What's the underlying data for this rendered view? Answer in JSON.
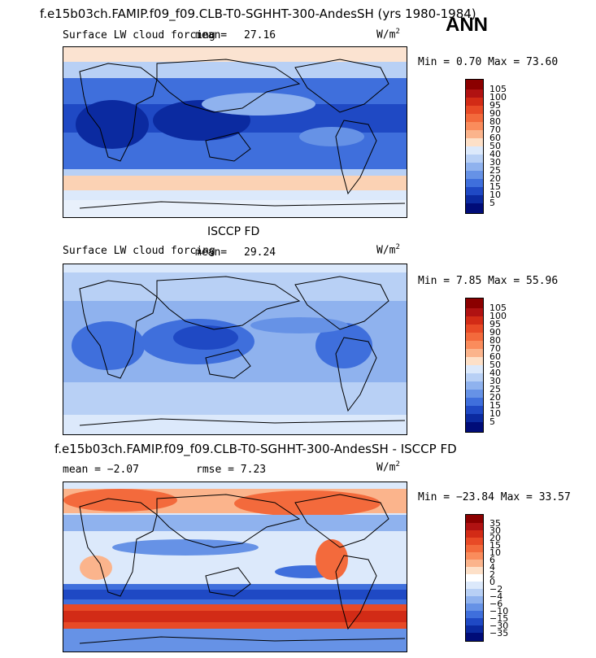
{
  "header": {
    "main_title": "f.e15b03ch.FAMIP.f09_f09.CLB-T0-SGHHT-300-AndesSH (yrs 1980-1984)",
    "season": "ANN"
  },
  "panels": [
    {
      "id": "model",
      "variable": "Surface LW cloud forcing",
      "mean_label": "mean=",
      "mean_value": "27.16",
      "units": "W/m",
      "units_sup": "2",
      "minmax": "Min =    0.70 Max =  73.60",
      "colorbar_labels": [
        "105",
        "100",
        "95",
        "90",
        "80",
        "70",
        "60",
        "50",
        "40",
        "30",
        "25",
        "20",
        "15",
        "10",
        "5"
      ],
      "colors": [
        "#8b0000",
        "#b01212",
        "#d22b16",
        "#e84a26",
        "#f36a3c",
        "#fa8c5c",
        "#fbb48c",
        "#fde0c8",
        "#dce9fb",
        "#b8d0f5",
        "#8fb2ee",
        "#6692e6",
        "#3f6fdc",
        "#1f49c4",
        "#0b2aa0",
        "#000c78"
      ]
    },
    {
      "id": "obs",
      "obs_title": "ISCCP FD",
      "variable": "Surface LW cloud forcing",
      "mean_label": "mean=",
      "mean_value": "29.24",
      "units": "W/m",
      "units_sup": "2",
      "minmax": "Min =    7.85 Max =  55.96",
      "colorbar_labels": [
        "105",
        "100",
        "95",
        "90",
        "80",
        "70",
        "60",
        "50",
        "40",
        "30",
        "25",
        "20",
        "15",
        "10",
        "5"
      ],
      "colors": [
        "#8b0000",
        "#b01212",
        "#d22b16",
        "#e84a26",
        "#f36a3c",
        "#fa8c5c",
        "#fbb48c",
        "#fde0c8",
        "#dce9fb",
        "#b8d0f5",
        "#8fb2ee",
        "#6692e6",
        "#3f6fdc",
        "#1f49c4",
        "#0b2aa0",
        "#000c78"
      ]
    },
    {
      "id": "diff",
      "diff_title": "f.e15b03ch.FAMIP.f09_f09.CLB-T0-SGHHT-300-AndesSH - ISCCP FD",
      "mean_text": "mean =  −2.07",
      "rmse_text": "rmse =    7.23",
      "units": "W/m",
      "units_sup": "2",
      "minmax": "Min = −23.84 Max =  33.57",
      "colorbar_labels": [
        "35",
        "30",
        "20",
        "15",
        "10",
        "6",
        "4",
        "2",
        "0",
        "−2",
        "−4",
        "−6",
        "−10",
        "−15",
        "−30",
        "−35"
      ],
      "colors": [
        "#8b0000",
        "#b01212",
        "#d22b16",
        "#e84a26",
        "#f36a3c",
        "#fa8c5c",
        "#fbb48c",
        "#fde0c8",
        "#ffffff",
        "#dce9fb",
        "#b8d0f5",
        "#8fb2ee",
        "#6692e6",
        "#3f6fdc",
        "#1f49c4",
        "#0b2aa0",
        "#000c78"
      ]
    }
  ],
  "chart_data": [
    {
      "type": "heatmap",
      "title": "Surface LW cloud forcing",
      "mean": 27.16,
      "min": 0.7,
      "max": 73.6,
      "units": "W/m2",
      "colorbar_levels": [
        5,
        10,
        15,
        20,
        25,
        30,
        40,
        50,
        60,
        70,
        80,
        90,
        95,
        100,
        105
      ]
    },
    {
      "type": "heatmap",
      "title": "Surface LW cloud forcing",
      "subtitle": "ISCCP FD",
      "mean": 29.24,
      "min": 7.85,
      "max": 55.96,
      "units": "W/m2",
      "colorbar_levels": [
        5,
        10,
        15,
        20,
        25,
        30,
        40,
        50,
        60,
        70,
        80,
        90,
        95,
        100,
        105
      ]
    },
    {
      "type": "heatmap",
      "title": "f.e15b03ch.FAMIP.f09_f09.CLB-T0-SGHHT-300-AndesSH - ISCCP FD",
      "mean": -2.07,
      "rmse": 7.23,
      "min": -23.84,
      "max": 33.57,
      "units": "W/m2",
      "colorbar_levels": [
        -35,
        -30,
        -15,
        -10,
        -6,
        -4,
        -2,
        0,
        2,
        4,
        6,
        10,
        15,
        20,
        30,
        35
      ]
    }
  ]
}
